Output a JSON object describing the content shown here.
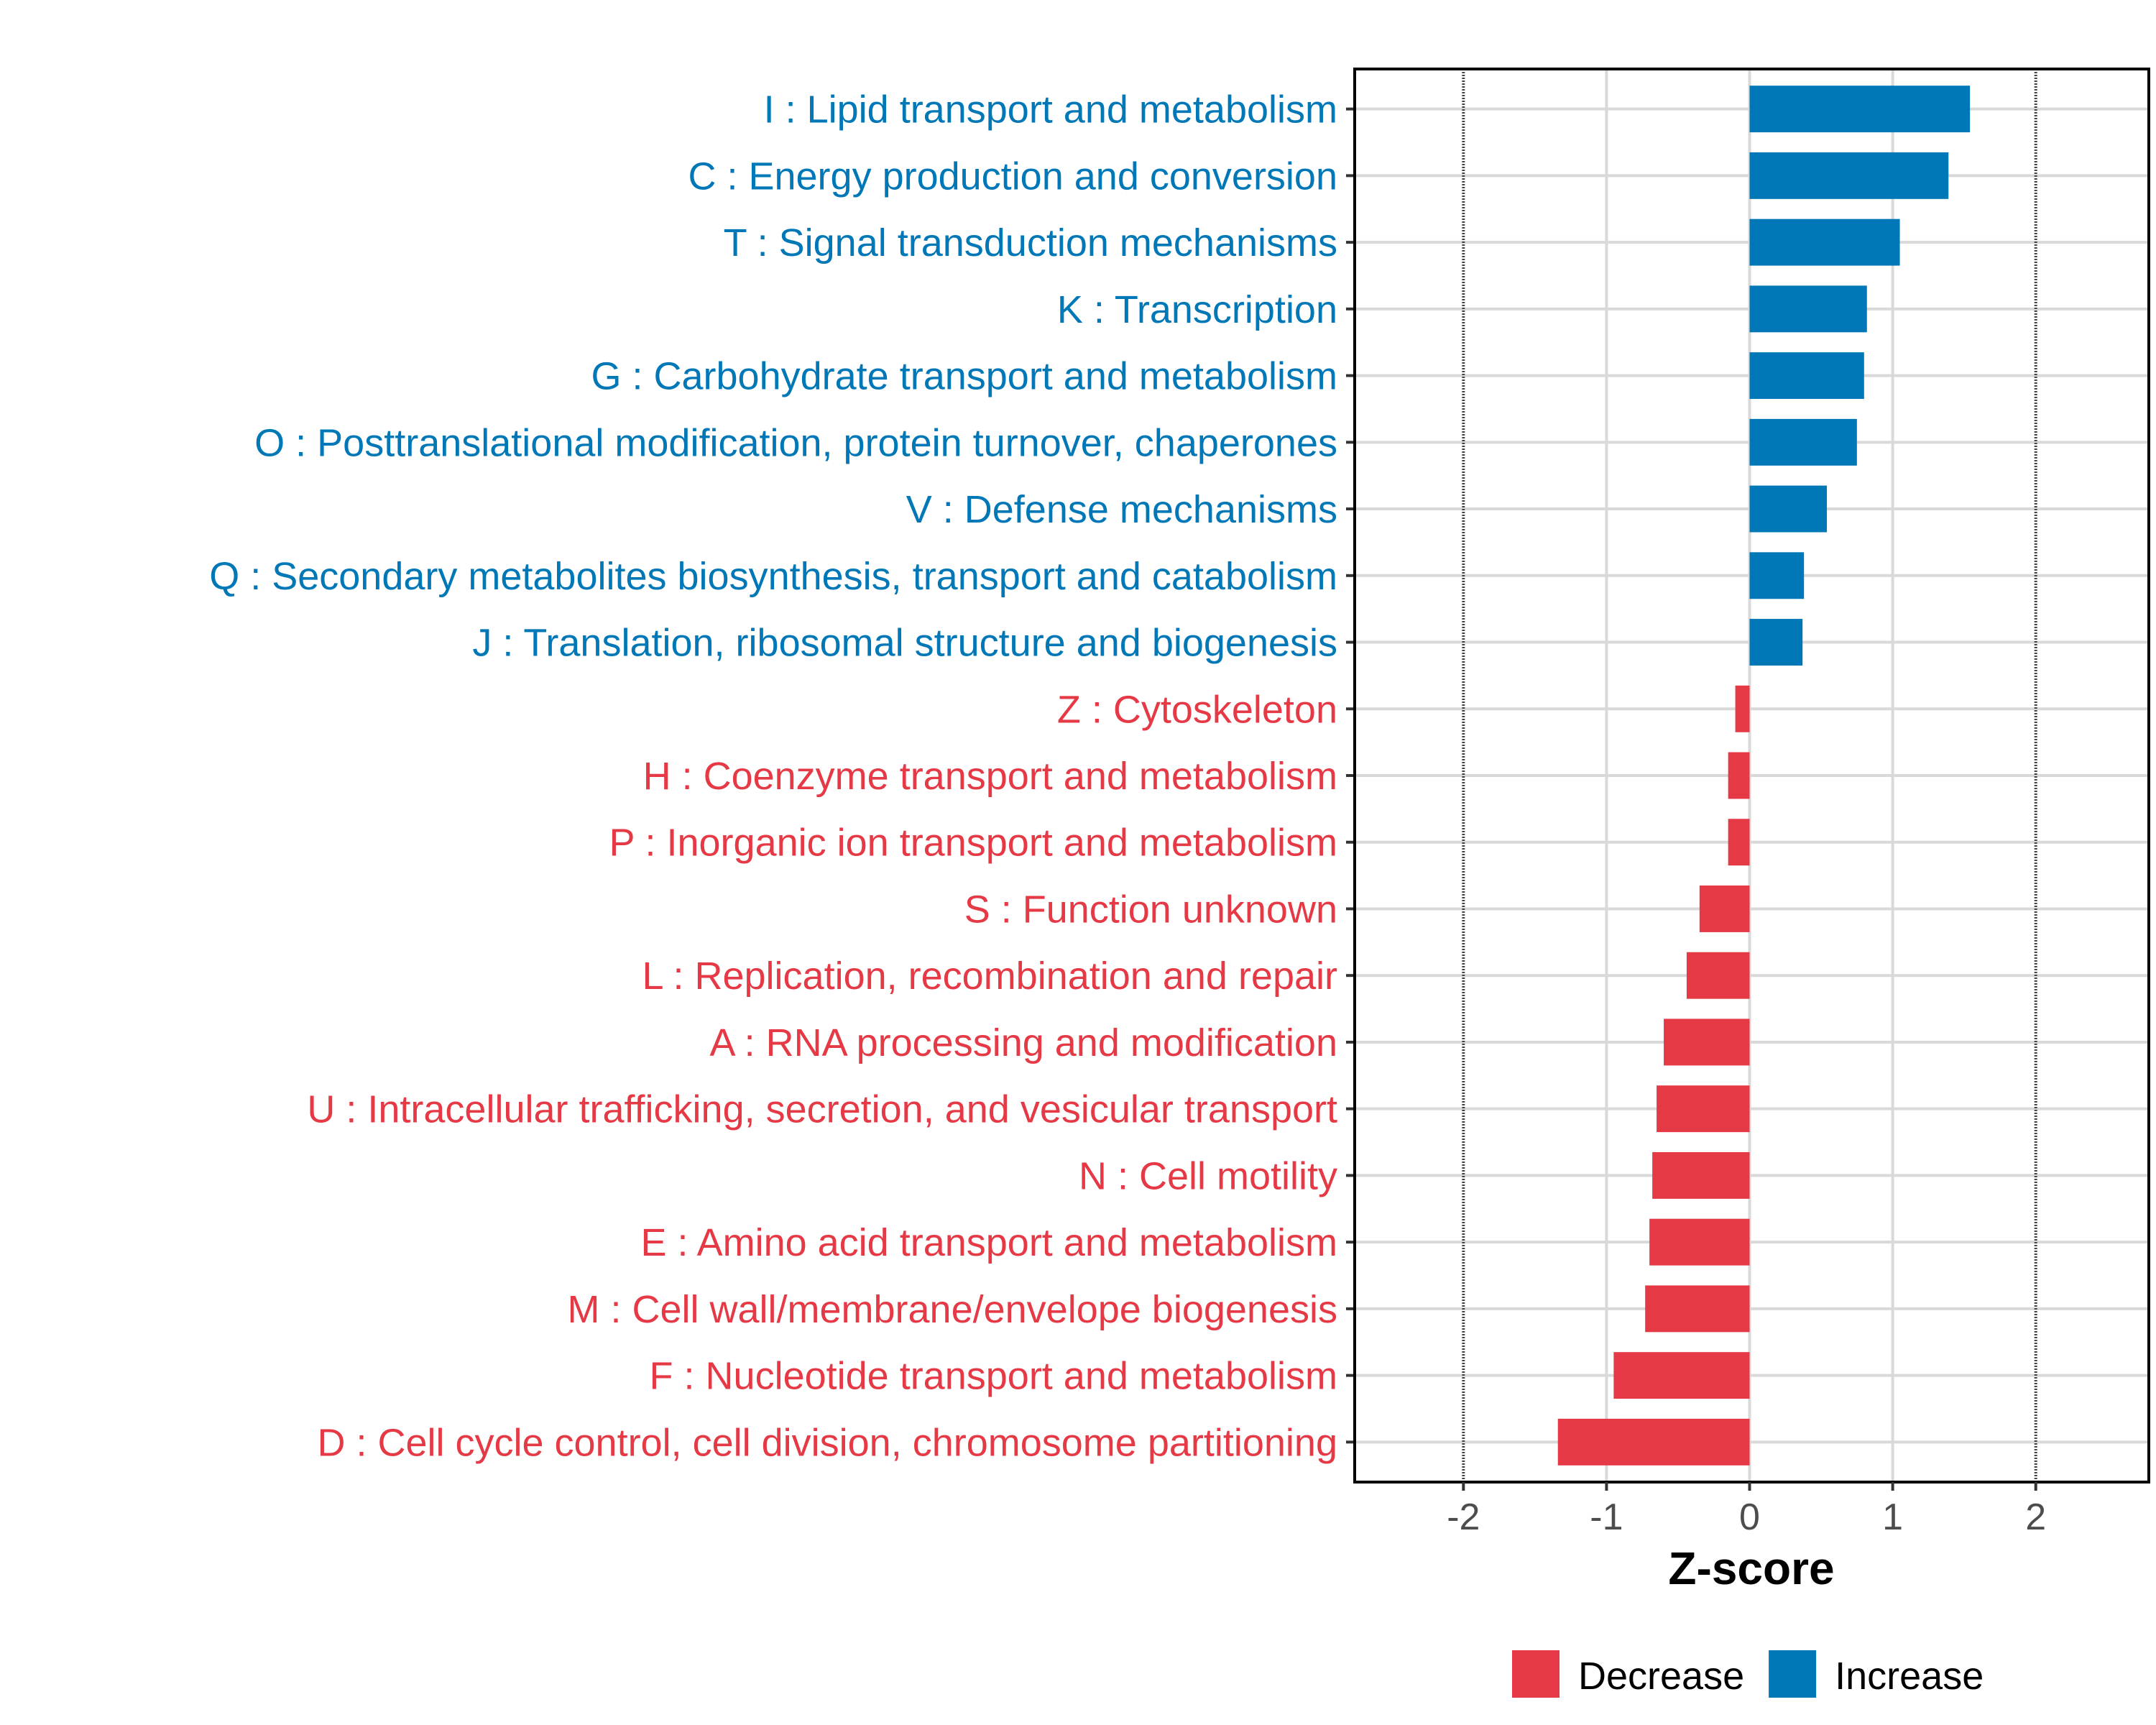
{
  "chart_data": {
    "type": "bar",
    "orientation": "horizontal",
    "title": "",
    "xlabel": "Z-score",
    "ylabel": "",
    "xlim": [
      -2.76,
      2.79
    ],
    "xticks": [
      -2,
      -1,
      0,
      1,
      2
    ],
    "xtick_labels": [
      "-2",
      "-1",
      "0",
      "1",
      "2"
    ],
    "reference_lines": [
      -2,
      2
    ],
    "grid": true,
    "legend_position": "bottom",
    "colors": {
      "Decrease": "#E63946",
      "Increase": "#0077B6"
    },
    "legend": [
      {
        "label": "Decrease",
        "color": "#E63946"
      },
      {
        "label": "Increase",
        "color": "#0077B6"
      }
    ],
    "categories": [
      "I : Lipid transport and metabolism",
      "C : Energy production and conversion",
      "T : Signal transduction mechanisms",
      "K : Transcription",
      "G : Carbohydrate transport and metabolism",
      "O : Posttranslational modification, protein turnover, chaperones",
      "V : Defense mechanisms",
      "Q : Secondary metabolites biosynthesis, transport and catabolism",
      "J : Translation, ribosomal structure and biogenesis",
      "Z : Cytoskeleton",
      "H : Coenzyme transport and metabolism",
      "P : Inorganic ion transport and metabolism",
      "S : Function unknown",
      "L : Replication, recombination and repair",
      "A : RNA processing and modification",
      "U : Intracellular trafficking, secretion, and vesicular transport",
      "N : Cell motility",
      "E : Amino acid transport and metabolism",
      "M : Cell wall/membrane/envelope biogenesis",
      "F : Nucleotide transport and metabolism",
      "D : Cell cycle control, cell division, chromosome partitioning"
    ],
    "values": [
      1.54,
      1.39,
      1.05,
      0.82,
      0.8,
      0.75,
      0.54,
      0.38,
      0.37,
      -0.1,
      -0.15,
      -0.15,
      -0.35,
      -0.44,
      -0.6,
      -0.65,
      -0.68,
      -0.7,
      -0.73,
      -0.95,
      -1.34
    ]
  }
}
